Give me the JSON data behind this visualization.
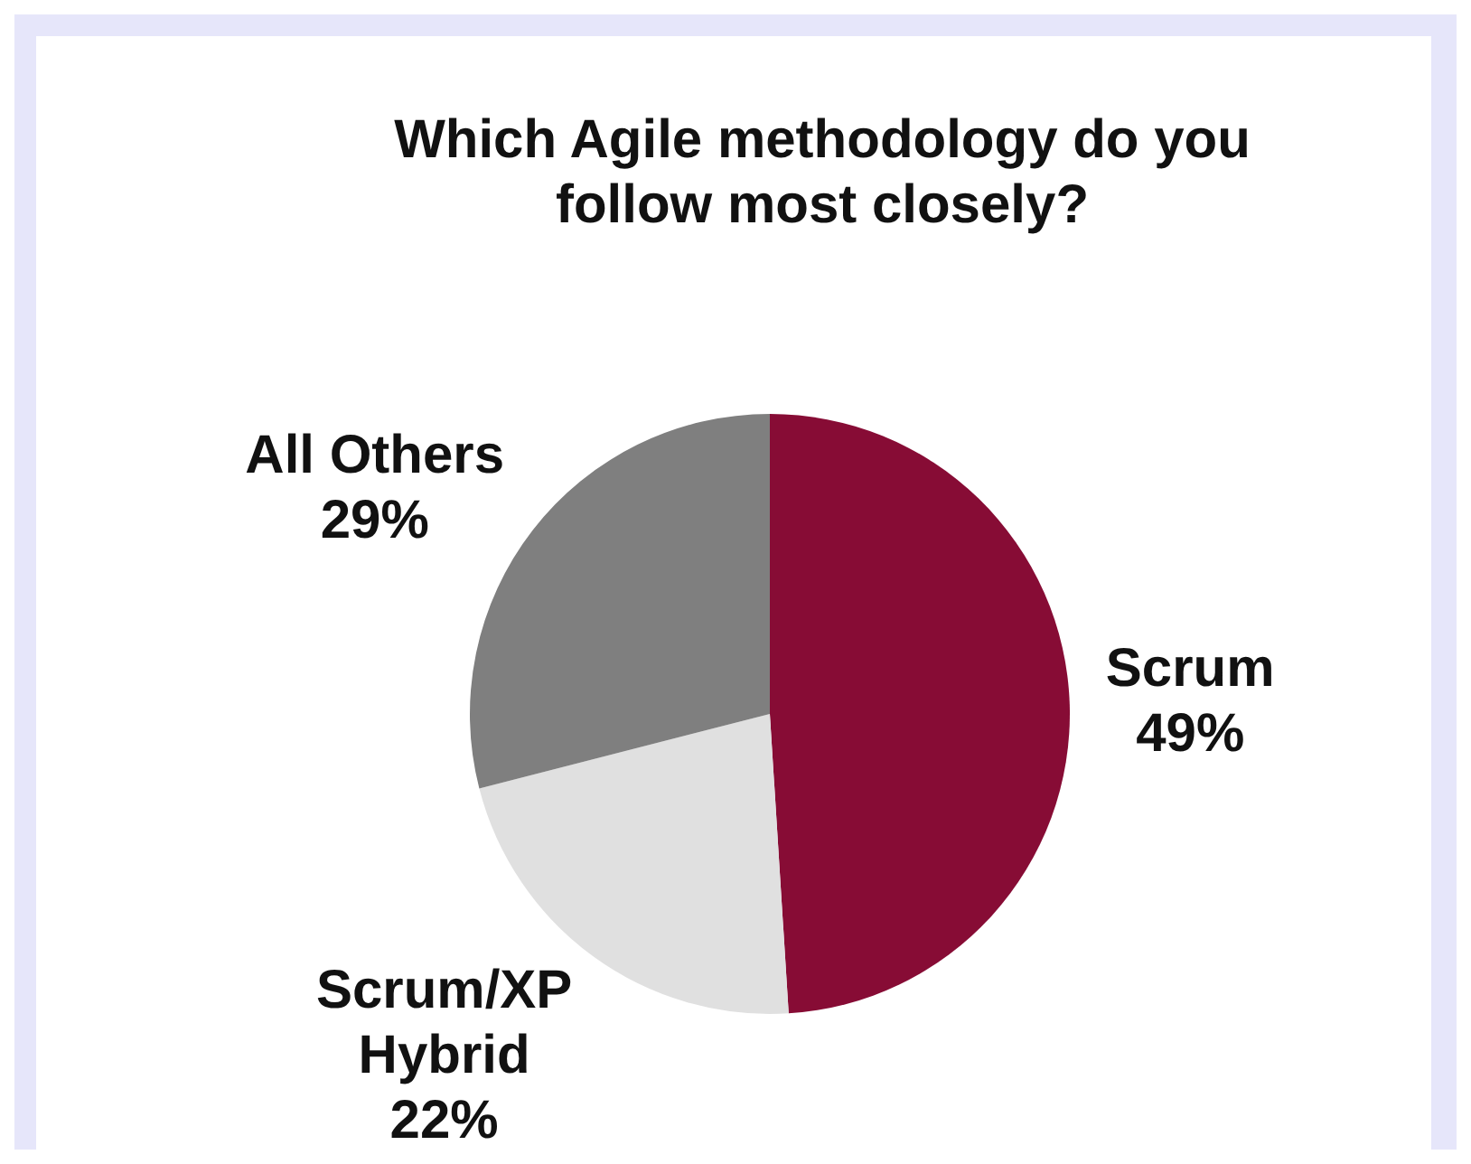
{
  "chart_data": {
    "type": "pie",
    "title": "Which Agile methodology do you follow most closely?",
    "categories": [
      "Scrum",
      "Scrum/XP Hybrid",
      "All Others"
    ],
    "values": [
      49,
      22,
      29
    ],
    "value_labels": [
      "49%",
      "22%",
      "29%"
    ],
    "colors": [
      "#870c35",
      "#e0e0e0",
      "#7f7f7f"
    ],
    "legend": false
  }
}
